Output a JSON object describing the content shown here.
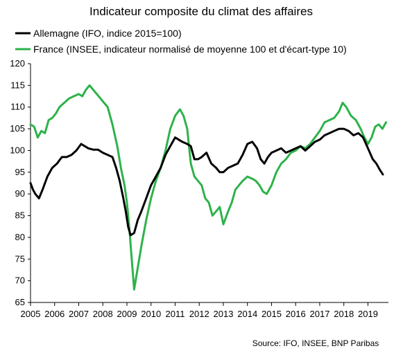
{
  "chart_data": {
    "type": "line",
    "title": "Indicateur composite du climat des affaires",
    "source": "Source: IFO, INSEE, BNP Paribas",
    "ylim": [
      65,
      120
    ],
    "yticks": [
      65,
      70,
      75,
      80,
      85,
      90,
      95,
      100,
      105,
      110,
      115,
      120
    ],
    "xlim": [
      2005.0,
      2019.85
    ],
    "xticks": [
      "2005",
      "2006",
      "2007",
      "2008",
      "2009",
      "2010",
      "2011",
      "2012",
      "2013",
      "2014",
      "2015",
      "2016",
      "2017",
      "2018",
      "2019"
    ],
    "grid": false,
    "legend_position": "top-left",
    "series": [
      {
        "name": "Allemagne (IFO, indice 2015=100)",
        "color": "#000000",
        "x": [
          2005.0,
          2005.1,
          2005.2,
          2005.35,
          2005.5,
          2005.7,
          2005.9,
          2006.1,
          2006.3,
          2006.5,
          2006.7,
          2006.9,
          2007.1,
          2007.25,
          2007.4,
          2007.6,
          2007.8,
          2008.0,
          2008.2,
          2008.4,
          2008.55,
          2008.7,
          2008.85,
          2008.95,
          2009.05,
          2009.15,
          2009.3,
          2009.45,
          2009.6,
          2009.8,
          2010.0,
          2010.2,
          2010.4,
          2010.6,
          2010.8,
          2011.0,
          2011.15,
          2011.3,
          2011.5,
          2011.65,
          2011.8,
          2011.95,
          2012.1,
          2012.3,
          2012.5,
          2012.7,
          2012.85,
          2013.0,
          2013.2,
          2013.4,
          2013.6,
          2013.8,
          2014.0,
          2014.2,
          2014.4,
          2014.55,
          2014.7,
          2014.85,
          2015.0,
          2015.2,
          2015.4,
          2015.6,
          2015.8,
          2016.0,
          2016.2,
          2016.4,
          2016.6,
          2016.8,
          2017.0,
          2017.2,
          2017.4,
          2017.6,
          2017.8,
          2018.0,
          2018.2,
          2018.4,
          2018.6,
          2018.8,
          2019.0,
          2019.2,
          2019.35,
          2019.5,
          2019.62
        ],
        "values": [
          92.5,
          91,
          90,
          89,
          91,
          94,
          96,
          97,
          98.5,
          98.5,
          99,
          100,
          101.5,
          101,
          100.5,
          100.2,
          100.2,
          99.5,
          99,
          98.5,
          96,
          93,
          89,
          86,
          82.5,
          80.5,
          81,
          84,
          86,
          89,
          92,
          94,
          96,
          99,
          101,
          103,
          102.5,
          102,
          101.5,
          101,
          98,
          98,
          98.5,
          99.5,
          97,
          96,
          95,
          95,
          96,
          96.5,
          97,
          99,
          101.5,
          102,
          100.5,
          98,
          97,
          98.5,
          99.5,
          100,
          100.5,
          99.5,
          100,
          100.5,
          101,
          100,
          101,
          102,
          102.5,
          103.5,
          104,
          104.5,
          105,
          105,
          104.5,
          103.5,
          104,
          103,
          100.5,
          98,
          97,
          95.5,
          94.5
        ]
      },
      {
        "name": "France (INSEE, indicateur normalisé de moyenne 100 et d'écart-type 10)",
        "color": "#2db24a",
        "x": [
          2005.0,
          2005.15,
          2005.3,
          2005.45,
          2005.6,
          2005.75,
          2005.9,
          2006.05,
          2006.2,
          2006.4,
          2006.6,
          2006.8,
          2007.0,
          2007.15,
          2007.3,
          2007.45,
          2007.6,
          2007.75,
          2007.9,
          2008.05,
          2008.2,
          2008.4,
          2008.6,
          2008.75,
          2008.9,
          2009.0,
          2009.1,
          2009.2,
          2009.3,
          2009.45,
          2009.6,
          2009.8,
          2010.0,
          2010.2,
          2010.4,
          2010.6,
          2010.8,
          2011.0,
          2011.2,
          2011.35,
          2011.5,
          2011.65,
          2011.8,
          2011.95,
          2012.1,
          2012.25,
          2012.4,
          2012.55,
          2012.7,
          2012.85,
          2013.0,
          2013.2,
          2013.35,
          2013.5,
          2013.65,
          2013.8,
          2014.0,
          2014.2,
          2014.35,
          2014.5,
          2014.65,
          2014.8,
          2015.0,
          2015.2,
          2015.4,
          2015.6,
          2015.8,
          2016.0,
          2016.2,
          2016.4,
          2016.6,
          2016.8,
          2017.0,
          2017.2,
          2017.4,
          2017.6,
          2017.8,
          2017.95,
          2018.1,
          2018.3,
          2018.5,
          2018.7,
          2018.85,
          2019.0,
          2019.15,
          2019.3,
          2019.45,
          2019.6,
          2019.75
        ],
        "values": [
          106,
          105.5,
          103,
          104.5,
          104,
          107,
          107.5,
          108.5,
          110,
          111,
          112,
          112.5,
          113,
          112.5,
          114,
          115,
          114,
          113,
          112,
          111,
          110,
          106,
          101,
          96,
          92,
          88,
          82,
          75,
          68,
          73,
          78,
          84,
          89,
          93,
          96,
          100,
          105,
          108,
          109.5,
          108,
          105,
          97,
          94,
          93,
          92,
          89,
          88,
          85,
          86,
          87,
          83,
          86,
          88,
          91,
          92,
          93,
          94,
          93.5,
          93,
          92,
          90.5,
          90,
          92,
          95,
          97,
          98,
          99.5,
          100,
          101,
          100.5,
          101.5,
          103,
          104.5,
          106.5,
          107,
          107.5,
          109,
          111,
          110,
          108,
          107,
          105,
          103,
          101.5,
          103,
          105.5,
          106,
          105,
          106.5
        ]
      }
    ]
  }
}
